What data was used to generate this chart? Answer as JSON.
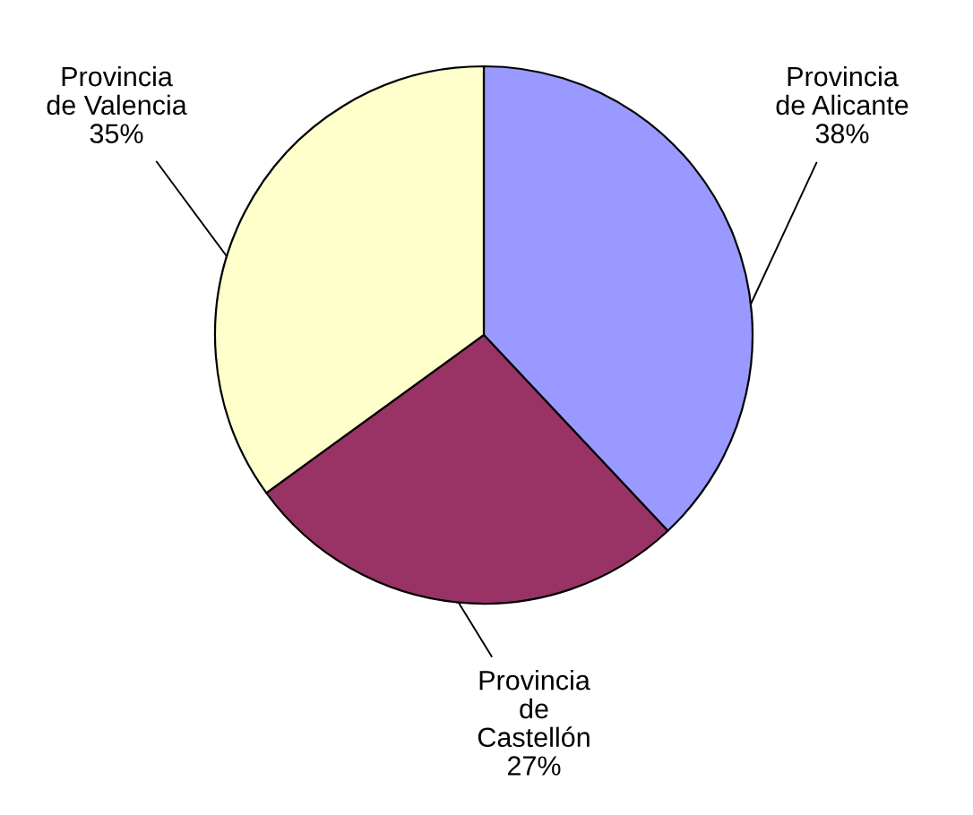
{
  "chart_data": {
    "type": "pie",
    "categories": [
      "Provincia\nde Alicante",
      "Provincia\nde\nCastellón",
      "Provincia\nde Valencia"
    ],
    "values": [
      38,
      27,
      35
    ],
    "colors": [
      "#9999ff",
      "#993366",
      "#ffffcc"
    ],
    "value_labels": [
      "38%",
      "27%",
      "35%"
    ],
    "legend": false
  }
}
